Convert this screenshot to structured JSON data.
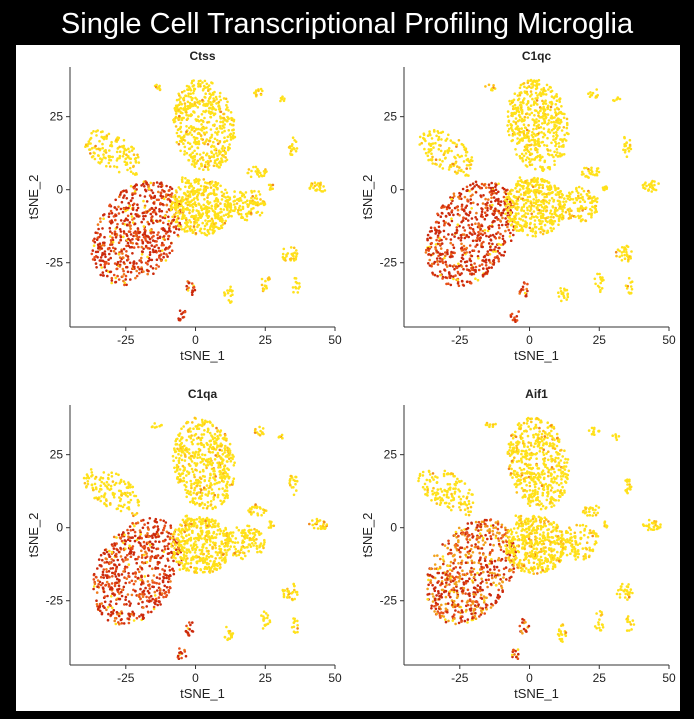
{
  "page_title": "Single Cell Transcriptional Profiling Microglia",
  "colors": {
    "background": "#000000",
    "panel": "#ffffff",
    "low_expression": "#ffe11a",
    "high_expression": "#cc2a0c"
  },
  "chart_data": [
    {
      "type": "scatter",
      "title": "Ctss",
      "xlabel": "tSNE_1",
      "ylabel": "tSNE_2",
      "xlim": [
        -45,
        50
      ],
      "ylim": [
        -47,
        42
      ],
      "xticks": [
        "-25",
        "0",
        "25",
        "50"
      ],
      "yticks": [
        "25",
        "0",
        "-25"
      ],
      "grid": false,
      "legend": "none",
      "high_expression_clusters": [
        "left-lower",
        "bottom-small"
      ]
    },
    {
      "type": "scatter",
      "title": "C1qc",
      "xlabel": "tSNE_1",
      "ylabel": "tSNE_2",
      "xlim": [
        -45,
        50
      ],
      "ylim": [
        -47,
        42
      ],
      "xticks": [
        "-25",
        "0",
        "25",
        "50"
      ],
      "yticks": [
        "25",
        "0",
        "-25"
      ],
      "grid": false,
      "legend": "none",
      "high_expression_clusters": [
        "left-lower",
        "bottom-small"
      ]
    },
    {
      "type": "scatter",
      "title": "C1qa",
      "xlabel": "tSNE_1",
      "ylabel": "tSNE_2",
      "xlim": [
        -45,
        50
      ],
      "ylim": [
        -47,
        42
      ],
      "xticks": [
        "-25",
        "0",
        "25",
        "50"
      ],
      "yticks": [
        "25",
        "0",
        "-25"
      ],
      "grid": false,
      "legend": "none",
      "high_expression_clusters": [
        "left-lower",
        "bottom-small"
      ]
    },
    {
      "type": "scatter",
      "title": "Aif1",
      "xlabel": "tSNE_1",
      "ylabel": "tSNE_2",
      "xlim": [
        -45,
        50
      ],
      "ylim": [
        -47,
        42
      ],
      "xticks": [
        "-25",
        "0",
        "25",
        "50"
      ],
      "yticks": [
        "25",
        "0",
        "-25"
      ],
      "grid": false,
      "legend": "none",
      "high_expression_clusters": [
        "left-lower",
        "bottom-small"
      ]
    }
  ]
}
